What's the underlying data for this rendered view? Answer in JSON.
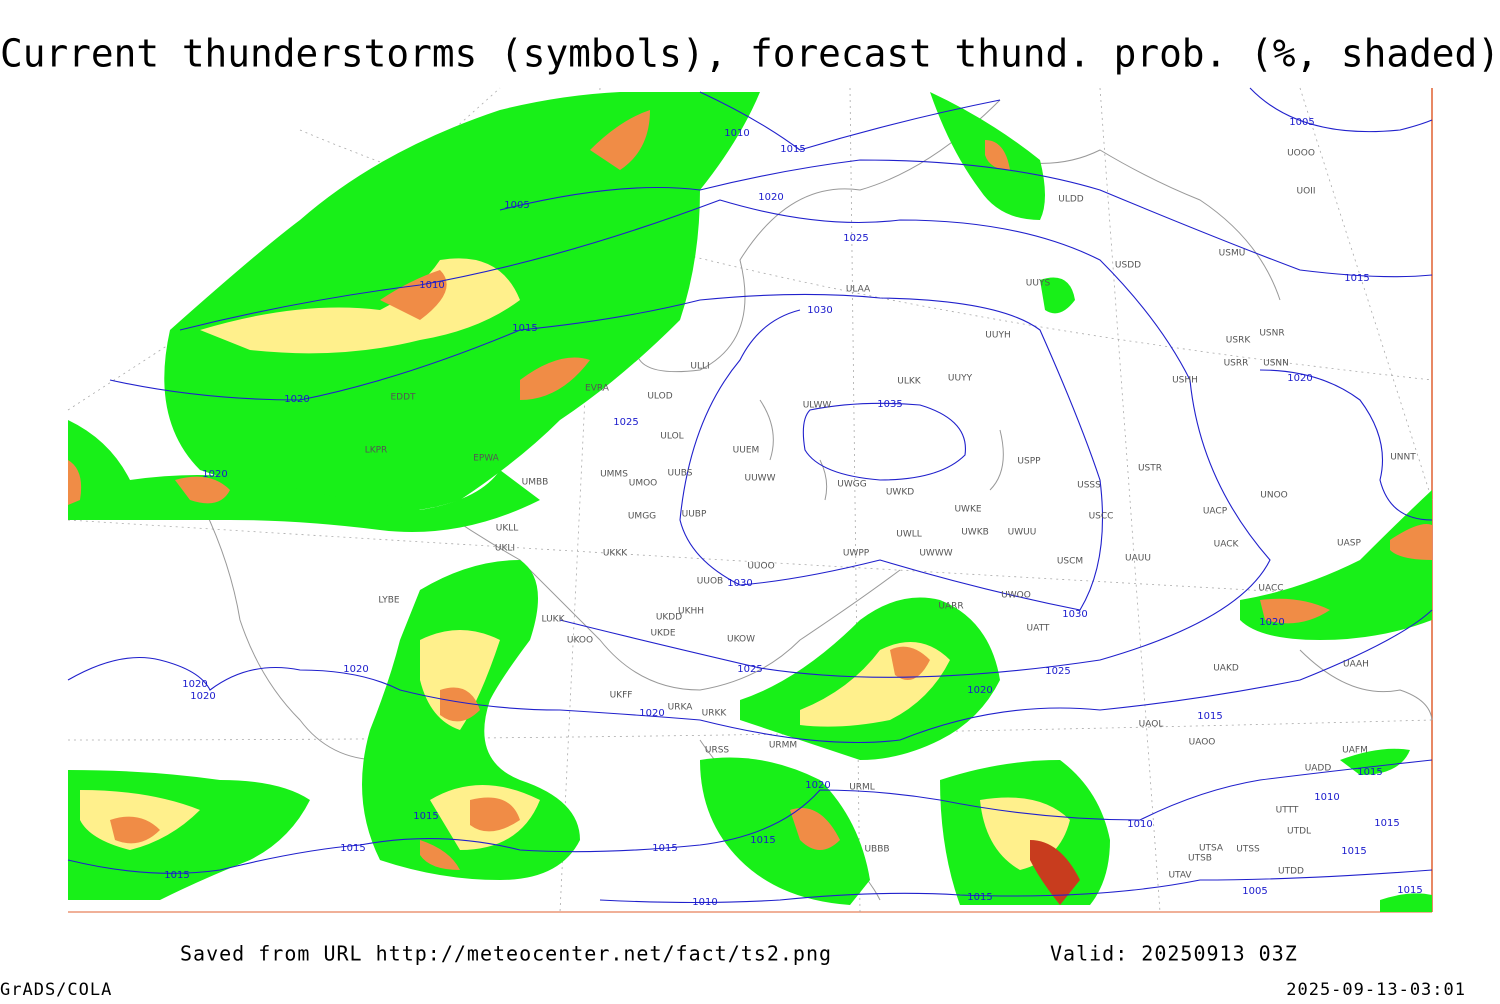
{
  "header": {
    "title": "Current thunderstorms (symbols), forecast thund. prob. (%, shaded)"
  },
  "map": {
    "isobar_labels": [
      "1010",
      "1015",
      "1005",
      "1020",
      "1025",
      "1010",
      "1015",
      "1030",
      "1035",
      "1025",
      "1020",
      "1020",
      "1030",
      "1030",
      "1025",
      "1025",
      "1020",
      "1020",
      "1020",
      "1020",
      "1020",
      "1015",
      "1020",
      "1015",
      "1015",
      "1015",
      "1015",
      "1015",
      "1010",
      "1010",
      "1015",
      "1005",
      "1015",
      "1010",
      "1015",
      "1015",
      "1015",
      "1005",
      "1015",
      "1020",
      "1020"
    ],
    "stations": [
      "EDDT",
      "LKPR",
      "EPWA",
      "UMBB",
      "UKLL",
      "UKLI",
      "LYBE",
      "ULLI",
      "EVRA",
      "ULOD",
      "ULOL",
      "UUEM",
      "UUWW",
      "UMMS",
      "UMOO",
      "UUBS",
      "UMGG",
      "UUBP",
      "UKKK",
      "UUOO",
      "UUOB",
      "UWPP",
      "UWWW",
      "UWLL",
      "UWKB",
      "UWUU",
      "UWKE",
      "UWGG",
      "UWKD",
      "ULKK",
      "UUYY",
      "ULWW",
      "UUYH",
      "ULAA",
      "ULDD",
      "UUYS",
      "USDD",
      "USMU",
      "USRR",
      "USRK",
      "USNR",
      "USNN",
      "USHH",
      "USPP",
      "USTR",
      "USSS",
      "USCC",
      "USCM",
      "UAUU",
      "UACP",
      "UACK",
      "UNOO",
      "UNNT",
      "UASP",
      "UACC",
      "UAKD",
      "UAAH",
      "UATT",
      "UARR",
      "UWOO",
      "UAOL",
      "UAOO",
      "UAFM",
      "UADD",
      "UTTT",
      "UTDL",
      "UTSA",
      "UTSS",
      "UTSB",
      "UTAV",
      "UTDD",
      "UKFF",
      "URKA",
      "URKK",
      "URMM",
      "URSS",
      "UKOW",
      "UKOO",
      "UKDE",
      "UKDD",
      "UKHH",
      "LUKK",
      "UBBB",
      "URML",
      "UOII",
      "UOOO"
    ]
  },
  "footer": {
    "saved_from": "Saved from URL http://meteocenter.net/fact/ts2.png",
    "valid": "Valid: 20250913 03Z",
    "credit": "GrADS/COLA",
    "timestamp": "2025-09-13-03:01"
  }
}
